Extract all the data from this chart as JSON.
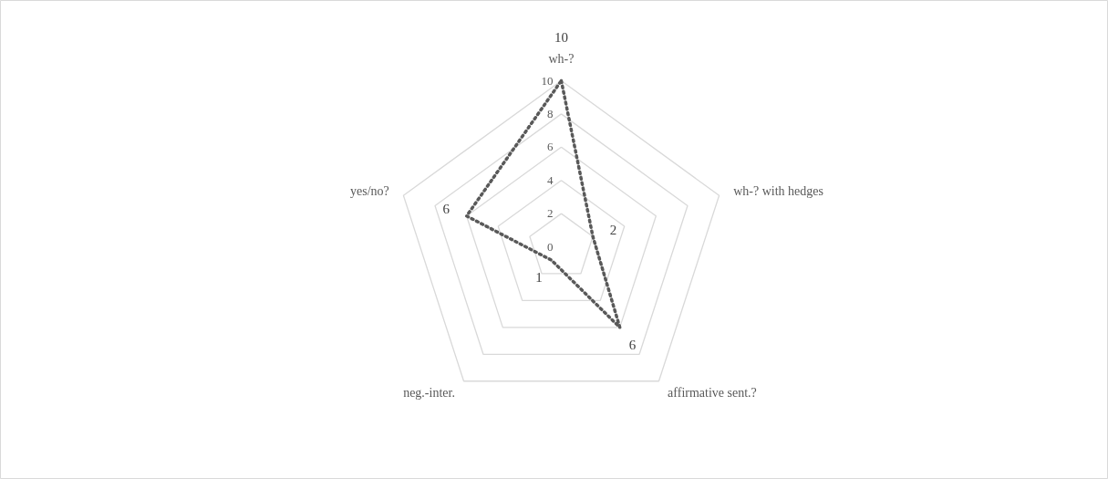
{
  "chart_data": {
    "type": "radar",
    "categories": [
      "wh-?",
      "wh-? with hedges",
      "affirmative sent.?",
      "neg.-inter.",
      "yes/no?"
    ],
    "series": [
      {
        "color": "#595959",
        "values": [
          10,
          2,
          6,
          1,
          6
        ]
      }
    ],
    "ylim": [
      0,
      10
    ],
    "yticks": [
      0,
      2,
      4,
      6,
      8,
      10
    ],
    "grid": true,
    "line_style": "dotted",
    "marker": "none",
    "data_labels": true
  }
}
